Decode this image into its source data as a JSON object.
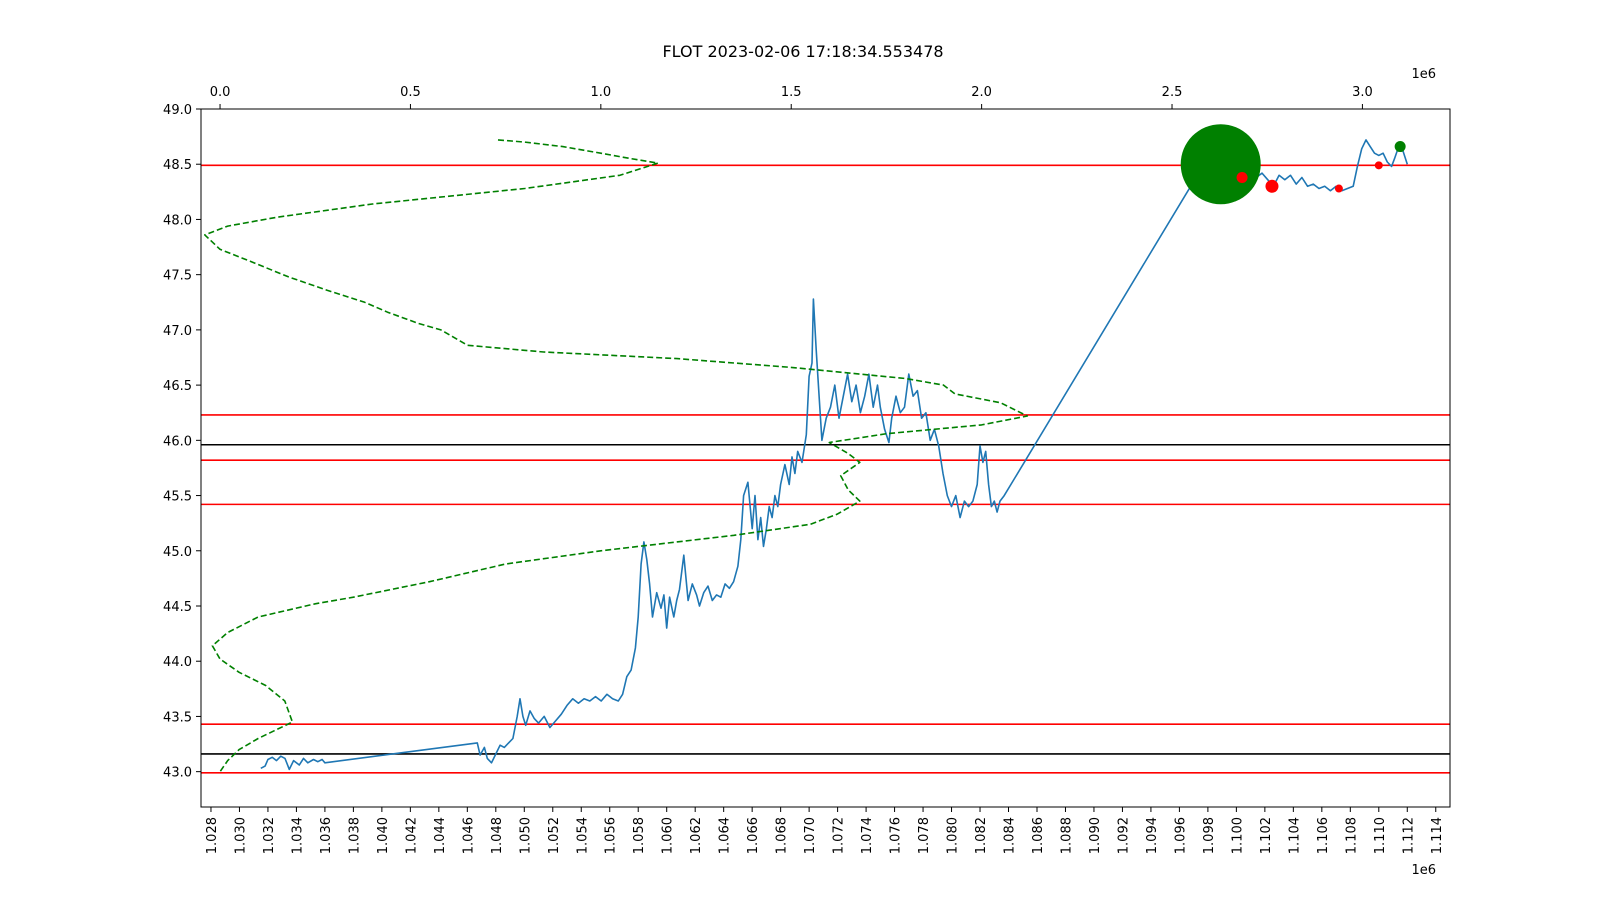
{
  "figure": {
    "title": "FLOT 2023-02-06 17:18:34.553478",
    "bottom_axis_multiplier": "1e6",
    "top_axis_multiplier": "1e6"
  },
  "chart_data": {
    "type": "line",
    "title": "FLOT 2023-02-06 17:18:34.553478",
    "xlabel": "",
    "ylabel": "",
    "xlim": [
      1.0273,
      1.115
    ],
    "ylim": [
      42.68,
      49.0
    ],
    "x_ticks": [
      "1.028",
      "1.030",
      "1.032",
      "1.034",
      "1.036",
      "1.038",
      "1.040",
      "1.042",
      "1.044",
      "1.046",
      "1.048",
      "1.050",
      "1.052",
      "1.054",
      "1.056",
      "1.058",
      "1.060",
      "1.062",
      "1.064",
      "1.066",
      "1.068",
      "1.070",
      "1.072",
      "1.074",
      "1.076",
      "1.078",
      "1.080",
      "1.082",
      "1.084",
      "1.086",
      "1.088",
      "1.090",
      "1.092",
      "1.094",
      "1.096",
      "1.098",
      "1.100",
      "1.102",
      "1.104",
      "1.106",
      "1.108",
      "1.110",
      "1.112",
      "1.114"
    ],
    "y_ticks": [
      "43.0",
      "43.5",
      "44.0",
      "44.5",
      "45.0",
      "45.5",
      "46.0",
      "46.5",
      "47.0",
      "47.5",
      "48.0",
      "48.5",
      "49.0"
    ],
    "top_axis": {
      "xlim": [
        -0.05,
        3.23
      ],
      "ticks": [
        "0.0",
        "0.5",
        "1.0",
        "1.5",
        "2.0",
        "2.5",
        "3.0"
      ]
    },
    "grid": false,
    "series": [
      {
        "color": "#1f77b4",
        "style": "solid",
        "points": [
          [
            1.0315,
            43.03
          ],
          [
            1.0318,
            43.05
          ],
          [
            1.032,
            43.11
          ],
          [
            1.0323,
            43.13
          ],
          [
            1.0326,
            43.1
          ],
          [
            1.0329,
            43.14
          ],
          [
            1.0332,
            43.12
          ],
          [
            1.0335,
            43.02
          ],
          [
            1.0338,
            43.1
          ],
          [
            1.0342,
            43.06
          ],
          [
            1.0345,
            43.12
          ],
          [
            1.0348,
            43.08
          ],
          [
            1.0352,
            43.11
          ],
          [
            1.0355,
            43.09
          ],
          [
            1.0358,
            43.11
          ],
          [
            1.036,
            43.08
          ],
          [
            1.0467,
            43.26
          ],
          [
            1.0469,
            43.15
          ],
          [
            1.0472,
            43.22
          ],
          [
            1.0474,
            43.12
          ],
          [
            1.0477,
            43.08
          ],
          [
            1.048,
            43.16
          ],
          [
            1.0483,
            43.24
          ],
          [
            1.0486,
            43.22
          ],
          [
            1.0489,
            43.26
          ],
          [
            1.0492,
            43.3
          ],
          [
            1.0495,
            43.5
          ],
          [
            1.0497,
            43.66
          ],
          [
            1.0499,
            43.5
          ],
          [
            1.0501,
            43.42
          ],
          [
            1.0504,
            43.55
          ],
          [
            1.0507,
            43.48
          ],
          [
            1.051,
            43.44
          ],
          [
            1.0514,
            43.5
          ],
          [
            1.0518,
            43.4
          ],
          [
            1.0522,
            43.46
          ],
          [
            1.0526,
            43.52
          ],
          [
            1.053,
            43.6
          ],
          [
            1.0534,
            43.66
          ],
          [
            1.0538,
            43.62
          ],
          [
            1.0542,
            43.66
          ],
          [
            1.0546,
            43.64
          ],
          [
            1.055,
            43.68
          ],
          [
            1.0554,
            43.64
          ],
          [
            1.0558,
            43.7
          ],
          [
            1.0562,
            43.66
          ],
          [
            1.0566,
            43.64
          ],
          [
            1.0569,
            43.7
          ],
          [
            1.0572,
            43.86
          ],
          [
            1.0575,
            43.92
          ],
          [
            1.0578,
            44.12
          ],
          [
            1.058,
            44.4
          ],
          [
            1.0582,
            44.88
          ],
          [
            1.0584,
            45.08
          ],
          [
            1.0586,
            44.92
          ],
          [
            1.0588,
            44.7
          ],
          [
            1.059,
            44.4
          ],
          [
            1.0593,
            44.62
          ],
          [
            1.0596,
            44.48
          ],
          [
            1.0598,
            44.6
          ],
          [
            1.06,
            44.3
          ],
          [
            1.0602,
            44.58
          ],
          [
            1.0605,
            44.4
          ],
          [
            1.0607,
            44.55
          ],
          [
            1.0609,
            44.65
          ],
          [
            1.0612,
            44.96
          ],
          [
            1.0615,
            44.55
          ],
          [
            1.0618,
            44.7
          ],
          [
            1.0621,
            44.6
          ],
          [
            1.0623,
            44.5
          ],
          [
            1.0626,
            44.62
          ],
          [
            1.0629,
            44.68
          ],
          [
            1.0632,
            44.55
          ],
          [
            1.0635,
            44.6
          ],
          [
            1.0638,
            44.58
          ],
          [
            1.0641,
            44.7
          ],
          [
            1.0644,
            44.66
          ],
          [
            1.0647,
            44.72
          ],
          [
            1.065,
            44.86
          ],
          [
            1.0652,
            45.1
          ],
          [
            1.0654,
            45.5
          ],
          [
            1.0657,
            45.62
          ],
          [
            1.066,
            45.2
          ],
          [
            1.0662,
            45.5
          ],
          [
            1.0664,
            45.1
          ],
          [
            1.0666,
            45.3
          ],
          [
            1.0668,
            45.04
          ],
          [
            1.067,
            45.2
          ],
          [
            1.0672,
            45.4
          ],
          [
            1.0674,
            45.3
          ],
          [
            1.0676,
            45.5
          ],
          [
            1.0678,
            45.4
          ],
          [
            1.068,
            45.6
          ],
          [
            1.0683,
            45.78
          ],
          [
            1.0686,
            45.6
          ],
          [
            1.0688,
            45.85
          ],
          [
            1.069,
            45.7
          ],
          [
            1.0692,
            45.9
          ],
          [
            1.0695,
            45.8
          ],
          [
            1.0698,
            46.05
          ],
          [
            1.07,
            46.58
          ],
          [
            1.0702,
            46.7
          ],
          [
            1.0703,
            47.28
          ],
          [
            1.0705,
            46.82
          ],
          [
            1.0707,
            46.4
          ],
          [
            1.0709,
            46.0
          ],
          [
            1.0712,
            46.2
          ],
          [
            1.0715,
            46.3
          ],
          [
            1.0718,
            46.5
          ],
          [
            1.0721,
            46.2
          ],
          [
            1.0724,
            46.4
          ],
          [
            1.0727,
            46.6
          ],
          [
            1.073,
            46.35
          ],
          [
            1.0733,
            46.5
          ],
          [
            1.0736,
            46.25
          ],
          [
            1.0739,
            46.4
          ],
          [
            1.0742,
            46.6
          ],
          [
            1.0745,
            46.3
          ],
          [
            1.0748,
            46.5
          ],
          [
            1.075,
            46.3
          ],
          [
            1.0753,
            46.1
          ],
          [
            1.0756,
            45.98
          ],
          [
            1.0758,
            46.2
          ],
          [
            1.0761,
            46.4
          ],
          [
            1.0764,
            46.25
          ],
          [
            1.0767,
            46.3
          ],
          [
            1.077,
            46.6
          ],
          [
            1.0773,
            46.4
          ],
          [
            1.0776,
            46.45
          ],
          [
            1.0779,
            46.2
          ],
          [
            1.0782,
            46.25
          ],
          [
            1.0785,
            46.0
          ],
          [
            1.0788,
            46.1
          ],
          [
            1.0791,
            45.95
          ],
          [
            1.0794,
            45.7
          ],
          [
            1.0797,
            45.5
          ],
          [
            1.08,
            45.4
          ],
          [
            1.0803,
            45.5
          ],
          [
            1.0806,
            45.3
          ],
          [
            1.0809,
            45.45
          ],
          [
            1.0812,
            45.4
          ],
          [
            1.0815,
            45.45
          ],
          [
            1.0818,
            45.6
          ],
          [
            1.082,
            45.95
          ],
          [
            1.0822,
            45.8
          ],
          [
            1.0824,
            45.9
          ],
          [
            1.0826,
            45.6
          ],
          [
            1.0828,
            45.4
          ],
          [
            1.083,
            45.45
          ],
          [
            1.0832,
            45.35
          ],
          [
            1.0834,
            45.45
          ],
          [
            1.0837,
            45.5
          ],
          [
            1.0981,
            48.58
          ],
          [
            1.0984,
            48.62
          ],
          [
            1.0987,
            48.66
          ],
          [
            1.099,
            48.55
          ],
          [
            1.0993,
            48.45
          ],
          [
            1.0996,
            48.38
          ],
          [
            1.0999,
            48.32
          ],
          [
            1.1002,
            48.42
          ],
          [
            1.1006,
            48.35
          ],
          [
            1.101,
            48.3
          ],
          [
            1.1014,
            48.38
          ],
          [
            1.1018,
            48.42
          ],
          [
            1.1022,
            48.36
          ],
          [
            1.1026,
            48.3
          ],
          [
            1.103,
            48.4
          ],
          [
            1.1034,
            48.36
          ],
          [
            1.1038,
            48.4
          ],
          [
            1.1042,
            48.32
          ],
          [
            1.1046,
            48.38
          ],
          [
            1.105,
            48.3
          ],
          [
            1.1054,
            48.32
          ],
          [
            1.1058,
            48.28
          ],
          [
            1.1062,
            48.3
          ],
          [
            1.1066,
            48.26
          ],
          [
            1.107,
            48.3
          ],
          [
            1.1074,
            48.26
          ],
          [
            1.1078,
            48.28
          ],
          [
            1.1082,
            48.3
          ],
          [
            1.1085,
            48.48
          ],
          [
            1.1088,
            48.64
          ],
          [
            1.1091,
            48.72
          ],
          [
            1.1094,
            48.66
          ],
          [
            1.1097,
            48.6
          ],
          [
            1.11,
            48.58
          ],
          [
            1.1103,
            48.6
          ],
          [
            1.1106,
            48.52
          ],
          [
            1.1109,
            48.48
          ],
          [
            1.1111,
            48.55
          ],
          [
            1.1114,
            48.66
          ],
          [
            1.1117,
            48.62
          ],
          [
            1.112,
            48.5
          ]
        ]
      },
      {
        "color": "#008000",
        "style": "dashed",
        "axis": "top",
        "points": [
          [
            0.73,
            48.72
          ],
          [
            0.8,
            48.7
          ],
          [
            0.9,
            48.66
          ],
          [
            1.0,
            48.6
          ],
          [
            1.08,
            48.55
          ],
          [
            1.15,
            48.51
          ],
          [
            1.05,
            48.4
          ],
          [
            0.8,
            48.28
          ],
          [
            0.4,
            48.14
          ],
          [
            0.15,
            48.02
          ],
          [
            0.02,
            47.94
          ],
          [
            -0.04,
            47.86
          ],
          [
            0.0,
            47.73
          ],
          [
            0.08,
            47.62
          ],
          [
            0.18,
            47.48
          ],
          [
            0.28,
            47.36
          ],
          [
            0.38,
            47.25
          ],
          [
            0.44,
            47.16
          ],
          [
            0.52,
            47.06
          ],
          [
            0.58,
            47.0
          ],
          [
            0.65,
            46.86
          ],
          [
            0.85,
            46.8
          ],
          [
            1.2,
            46.74
          ],
          [
            1.5,
            46.66
          ],
          [
            1.8,
            46.56
          ],
          [
            1.9,
            46.5
          ],
          [
            1.93,
            46.42
          ],
          [
            2.05,
            46.34
          ],
          [
            2.12,
            46.22
          ],
          [
            2.0,
            46.14
          ],
          [
            1.75,
            46.06
          ],
          [
            1.6,
            45.98
          ],
          [
            1.65,
            45.88
          ],
          [
            1.68,
            45.8
          ],
          [
            1.63,
            45.68
          ],
          [
            1.65,
            45.55
          ],
          [
            1.68,
            45.45
          ],
          [
            1.62,
            45.33
          ],
          [
            1.55,
            45.24
          ],
          [
            1.35,
            45.14
          ],
          [
            1.0,
            45.0
          ],
          [
            0.75,
            44.88
          ],
          [
            0.55,
            44.72
          ],
          [
            0.35,
            44.58
          ],
          [
            0.25,
            44.52
          ],
          [
            0.1,
            44.4
          ],
          [
            0.02,
            44.26
          ],
          [
            -0.02,
            44.14
          ],
          [
            0.0,
            44.02
          ],
          [
            0.05,
            43.9
          ],
          [
            0.12,
            43.78
          ],
          [
            0.17,
            43.64
          ],
          [
            0.19,
            43.45
          ],
          [
            0.1,
            43.3
          ],
          [
            0.05,
            43.2
          ],
          [
            0.02,
            43.1
          ],
          [
            0.0,
            43.0
          ]
        ]
      }
    ],
    "horizontal_lines": [
      {
        "y": 48.49,
        "color": "#ff0000"
      },
      {
        "y": 46.23,
        "color": "#ff0000"
      },
      {
        "y": 45.82,
        "color": "#ff0000"
      },
      {
        "y": 45.42,
        "color": "#ff0000"
      },
      {
        "y": 43.43,
        "color": "#ff0000"
      },
      {
        "y": 42.99,
        "color": "#ff0000"
      },
      {
        "y": 45.96,
        "color": "#000000"
      },
      {
        "y": 43.16,
        "color": "#000000"
      }
    ],
    "markers": [
      {
        "x": 1.0989,
        "y": 48.5,
        "color": "#008000",
        "size": "large"
      },
      {
        "x": 1.1115,
        "y": 48.66,
        "color": "#008000",
        "size": "small"
      },
      {
        "x": 1.1004,
        "y": 48.38,
        "color": "#ff0000",
        "size": "small"
      },
      {
        "x": 1.1025,
        "y": 48.3,
        "color": "#ff0000",
        "size": "medium"
      },
      {
        "x": 1.1072,
        "y": 48.28,
        "color": "#ff0000",
        "size": "tiny"
      },
      {
        "x": 1.11,
        "y": 48.49,
        "color": "#ff0000",
        "size": "tiny"
      }
    ]
  }
}
